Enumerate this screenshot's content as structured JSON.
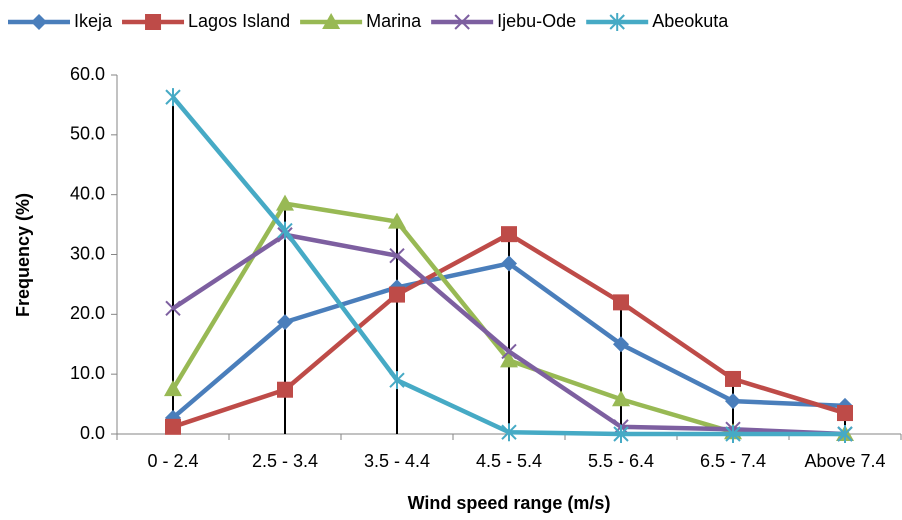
{
  "chart_data": {
    "type": "line",
    "x_label": "Wind speed range (m/s)",
    "y_label": "Frequency (%)",
    "categories": [
      "0 - 2.4",
      "2.5 - 3.4",
      "3.5 - 4.4",
      "4.5 - 5.4",
      "5.5 - 6.4",
      "6.5 - 7.4",
      "Above 7.4"
    ],
    "series": [
      {
        "name": "Ikeja",
        "color": "#4a7ebb",
        "marker": "diamond",
        "values": [
          2.7,
          18.7,
          24.5,
          28.5,
          15.0,
          5.5,
          4.7
        ]
      },
      {
        "name": "Lagos Island",
        "color": "#be4b48",
        "marker": "square",
        "values": [
          1.2,
          7.4,
          23.3,
          33.4,
          22.0,
          9.2,
          3.5
        ]
      },
      {
        "name": "Marina",
        "color": "#98b954",
        "marker": "triangle",
        "values": [
          7.5,
          38.5,
          35.5,
          12.3,
          5.8,
          0.3,
          0.0
        ]
      },
      {
        "name": "Ijebu-Ode",
        "color": "#7d5fa0",
        "marker": "x",
        "values": [
          21.0,
          33.3,
          29.8,
          13.8,
          1.2,
          0.8,
          0.0
        ]
      },
      {
        "name": "Abeokuta",
        "color": "#46aac5",
        "marker": "star",
        "values": [
          56.3,
          34.0,
          9.0,
          0.3,
          0.0,
          0.0,
          0.0
        ]
      }
    ],
    "ylim": [
      0,
      60
    ],
    "yticks": [
      {
        "value": 0,
        "label": "0.0"
      },
      {
        "value": 10,
        "label": "10.0"
      },
      {
        "value": 20,
        "label": "20.0"
      },
      {
        "value": 30,
        "label": "30.0"
      },
      {
        "value": 40,
        "label": "40.0"
      },
      {
        "value": 50,
        "label": "50.0"
      },
      {
        "value": 60,
        "label": "60.0"
      }
    ],
    "drop_lines": true,
    "legend": "top"
  }
}
